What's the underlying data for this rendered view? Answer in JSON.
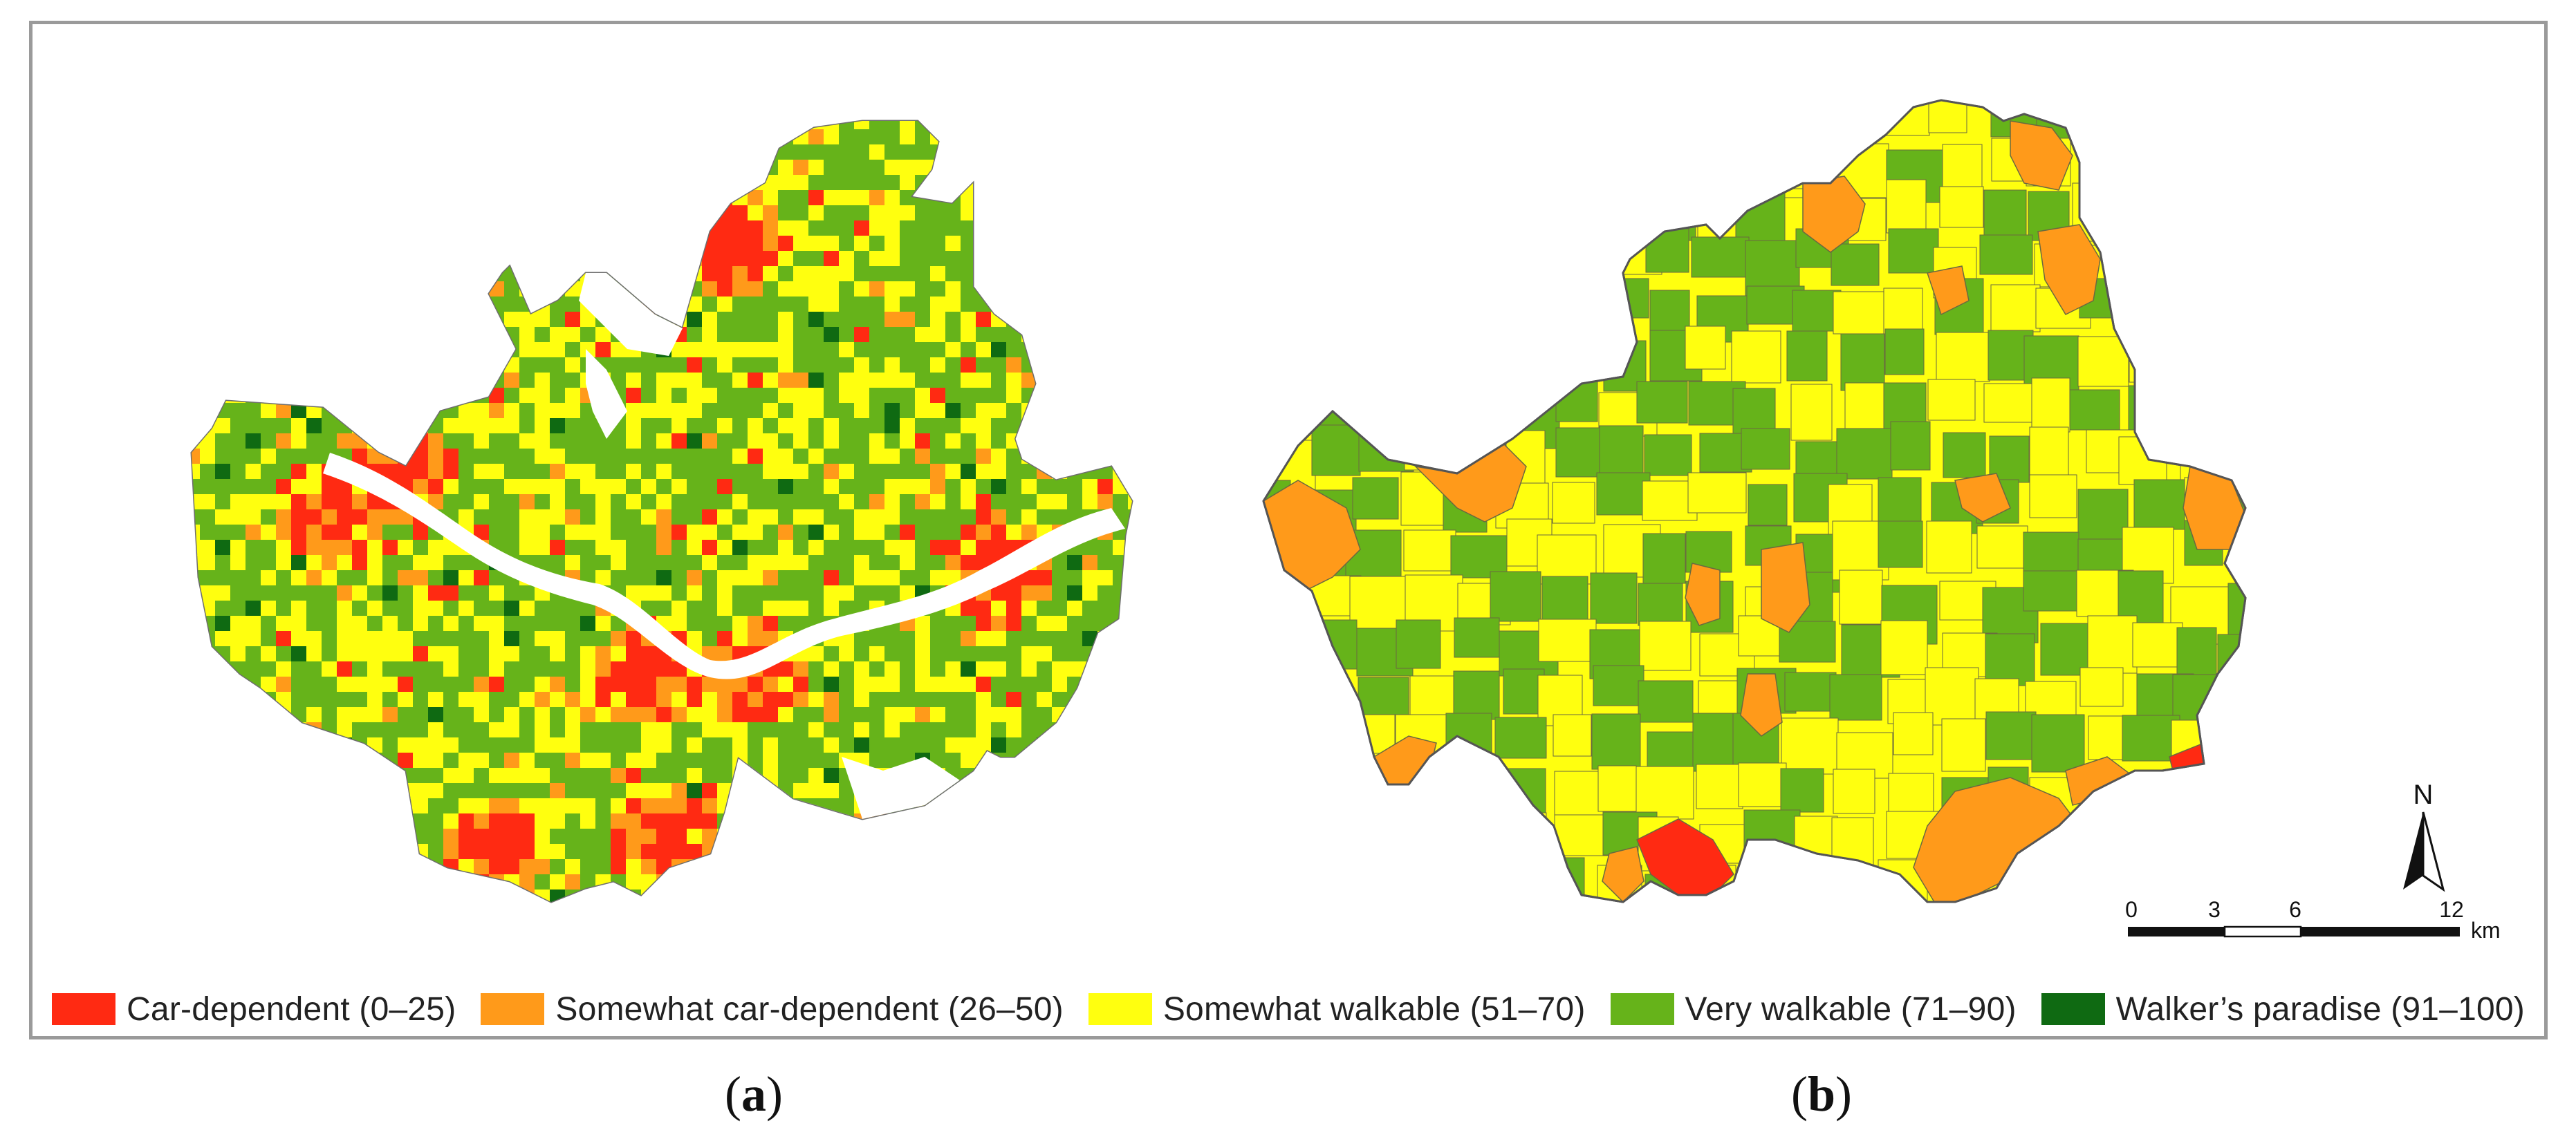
{
  "legend": [
    {
      "label": "Car-dependent (0–25)",
      "color": "#ff2a12"
    },
    {
      "label": "Somewhat car-dependent (26–50)",
      "color": "#ff9a1a"
    },
    {
      "label": "Somewhat walkable (51–70)",
      "color": "#ffff0f"
    },
    {
      "label": "Very walkable (71–90)",
      "color": "#66b31a"
    },
    {
      "label": "Walker’s paradise (91–100)",
      "color": "#0f6a12"
    }
  ],
  "panels": {
    "a": {
      "open": "(",
      "letter": "a",
      "close": ")"
    },
    "b": {
      "open": "(",
      "letter": "b",
      "close": ")"
    }
  },
  "north_arrow": {
    "label": "N"
  },
  "scale_bar": {
    "ticks": [
      "0",
      "3",
      "6",
      "12"
    ],
    "unit": "km"
  }
}
